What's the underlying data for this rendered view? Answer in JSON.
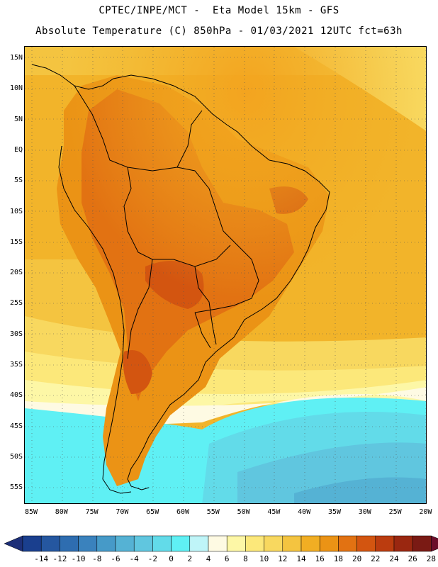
{
  "header": {
    "line1": "CPTEC/INPE/MCT -  Eta Model 15km - GFS",
    "line2": "Absolute Temperature (C) 850hPa - 01/03/2021 12UTC fct=63h"
  },
  "map": {
    "lat_labels": [
      "15N",
      "10N",
      "5N",
      "EQ",
      "5S",
      "10S",
      "15S",
      "20S",
      "25S",
      "30S",
      "35S",
      "40S",
      "45S",
      "50S",
      "55S"
    ],
    "lon_labels": [
      "85W",
      "80W",
      "75W",
      "70W",
      "65W",
      "60W",
      "55W",
      "50W",
      "45W",
      "40W",
      "35W",
      "30W",
      "25W",
      "20W"
    ]
  },
  "colorbar": {
    "labels": [
      "-14",
      "-12",
      "-10",
      "-8",
      "-6",
      "-4",
      "-2",
      "0",
      "2",
      "4",
      "6",
      "8",
      "10",
      "12",
      "14",
      "16",
      "18",
      "20",
      "22",
      "24",
      "26",
      "28"
    ],
    "colors": [
      "#1a3f8e",
      "#2557a0",
      "#2e6db0",
      "#3a82bd",
      "#469ac8",
      "#55b2d4",
      "#60c6df",
      "#62dbe9",
      "#5ff0f4",
      "#bff5f8",
      "#fefae3",
      "#fdf7a6",
      "#fce87a",
      "#f8d85f",
      "#f4c440",
      "#f1ae23",
      "#eb9315",
      "#e27212",
      "#d35510",
      "#bb3c0f",
      "#9a2710",
      "#7a1a14"
    ]
  }
}
